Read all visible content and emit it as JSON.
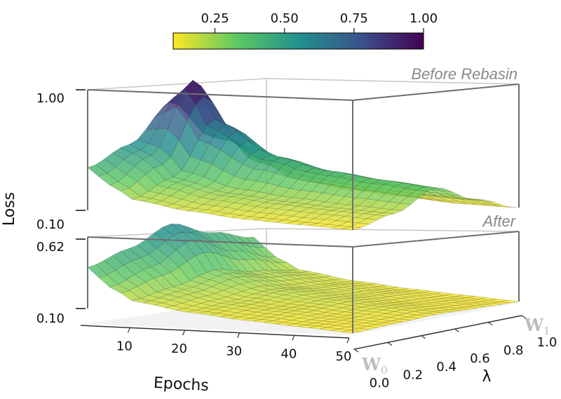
{
  "chart_data": {
    "type": "surface3d",
    "colormap": "viridis_r",
    "colorbar": {
      "ticks": [
        "0.25",
        "0.50",
        "0.75",
        "1.00"
      ],
      "range": [
        0.1,
        1.0
      ],
      "placement": "top"
    },
    "x_axis": {
      "label": "Epochs",
      "ticks": [
        "10",
        "20",
        "30",
        "40",
        "50"
      ],
      "range": [
        1,
        50
      ]
    },
    "y_axis": {
      "label": "λ",
      "ticks": [
        "0.0",
        "0.2",
        "0.4",
        "0.6",
        "0.8",
        "1.0"
      ],
      "range": [
        0,
        1
      ],
      "start_label": "W",
      "start_label_sub": "0",
      "end_label": "W",
      "end_label_sub": "1"
    },
    "z_label": "Loss",
    "panels": [
      {
        "name": "Before Rebasin",
        "zlim": [
          0.1,
          1.0
        ],
        "z_ticks": [
          "0.10",
          "1.00"
        ],
        "lambda": [
          0.0,
          0.25,
          0.5,
          0.75,
          1.0
        ],
        "epochs": [
          1,
          5,
          10,
          20,
          30,
          40,
          50
        ],
        "loss": [
          [
            0.42,
            0.3,
            0.2,
            0.15,
            0.12,
            0.11,
            0.1
          ],
          [
            0.55,
            0.48,
            0.32,
            0.24,
            0.21,
            0.19,
            0.18
          ],
          [
            0.82,
            1.0,
            0.7,
            0.48,
            0.4,
            0.36,
            0.33
          ],
          [
            0.52,
            0.5,
            0.35,
            0.27,
            0.23,
            0.21,
            0.2
          ],
          [
            0.4,
            0.29,
            0.19,
            0.14,
            0.12,
            0.1,
            0.1
          ]
        ]
      },
      {
        "name": "After",
        "zlim": [
          0.1,
          0.62
        ],
        "z_ticks": [
          "0.10",
          "0.62"
        ],
        "lambda": [
          0.0,
          0.25,
          0.5,
          0.75,
          1.0
        ],
        "epochs": [
          1,
          5,
          10,
          20,
          30,
          40,
          50
        ],
        "loss": [
          [
            0.4,
            0.27,
            0.18,
            0.14,
            0.12,
            0.11,
            0.1
          ],
          [
            0.48,
            0.36,
            0.22,
            0.16,
            0.14,
            0.12,
            0.11
          ],
          [
            0.6,
            0.5,
            0.28,
            0.19,
            0.16,
            0.14,
            0.12
          ],
          [
            0.48,
            0.36,
            0.22,
            0.16,
            0.14,
            0.12,
            0.11
          ],
          [
            0.39,
            0.26,
            0.18,
            0.14,
            0.12,
            0.11,
            0.1
          ]
        ]
      }
    ]
  }
}
